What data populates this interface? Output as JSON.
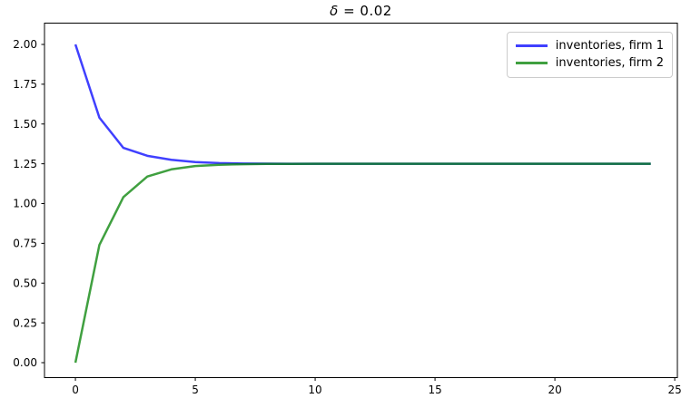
{
  "figure": {
    "background": "#ffffff",
    "spine_color": "#000000",
    "tick_label_color": "#000000"
  },
  "chart_data": {
    "type": "line",
    "title": "δ = 0.02",
    "title_symbol": "δ",
    "title_rest": " = 0.02",
    "xlabel": "",
    "ylabel": "",
    "grid": false,
    "x": [
      0,
      1,
      2,
      3,
      4,
      5,
      6,
      7,
      8,
      9,
      10,
      11,
      12,
      13,
      14,
      15,
      16,
      17,
      18,
      19,
      20,
      21,
      22,
      23,
      24
    ],
    "series": [
      {
        "name": "inventories, firm 1",
        "color": "#0000ff",
        "opacity": 0.75,
        "values": [
          2.0,
          1.54,
          1.35,
          1.3,
          1.275,
          1.261,
          1.254,
          1.2515,
          1.2506,
          1.2502,
          1.2501,
          1.25,
          1.25,
          1.25,
          1.25,
          1.25,
          1.25,
          1.25,
          1.25,
          1.25,
          1.25,
          1.25,
          1.25,
          1.25,
          1.25
        ]
      },
      {
        "name": "inventories, firm 2",
        "color": "#008000",
        "opacity": 0.75,
        "values": [
          0.0,
          0.74,
          1.04,
          1.17,
          1.215,
          1.236,
          1.244,
          1.2475,
          1.249,
          1.2496,
          1.2499,
          1.25,
          1.25,
          1.25,
          1.25,
          1.25,
          1.25,
          1.25,
          1.25,
          1.25,
          1.25,
          1.25,
          1.25,
          1.25,
          1.25
        ]
      }
    ],
    "xlim": [
      -1.29,
      25.11
    ],
    "ylim": [
      -0.094,
      2.134
    ],
    "xticks": {
      "values": [
        0,
        5,
        10,
        15,
        20,
        25
      ],
      "labels": [
        "0",
        "5",
        "10",
        "15",
        "20",
        "25"
      ]
    },
    "yticks": {
      "values": [
        0.0,
        0.25,
        0.5,
        0.75,
        1.0,
        1.25,
        1.5,
        1.75,
        2.0
      ],
      "labels": [
        "0.00",
        "0.25",
        "0.50",
        "0.75",
        "1.00",
        "1.25",
        "1.50",
        "1.75",
        "2.00"
      ]
    },
    "legend": {
      "position": "upper right",
      "entries": [
        "inventories, firm 1",
        "inventories, firm 2"
      ]
    }
  }
}
